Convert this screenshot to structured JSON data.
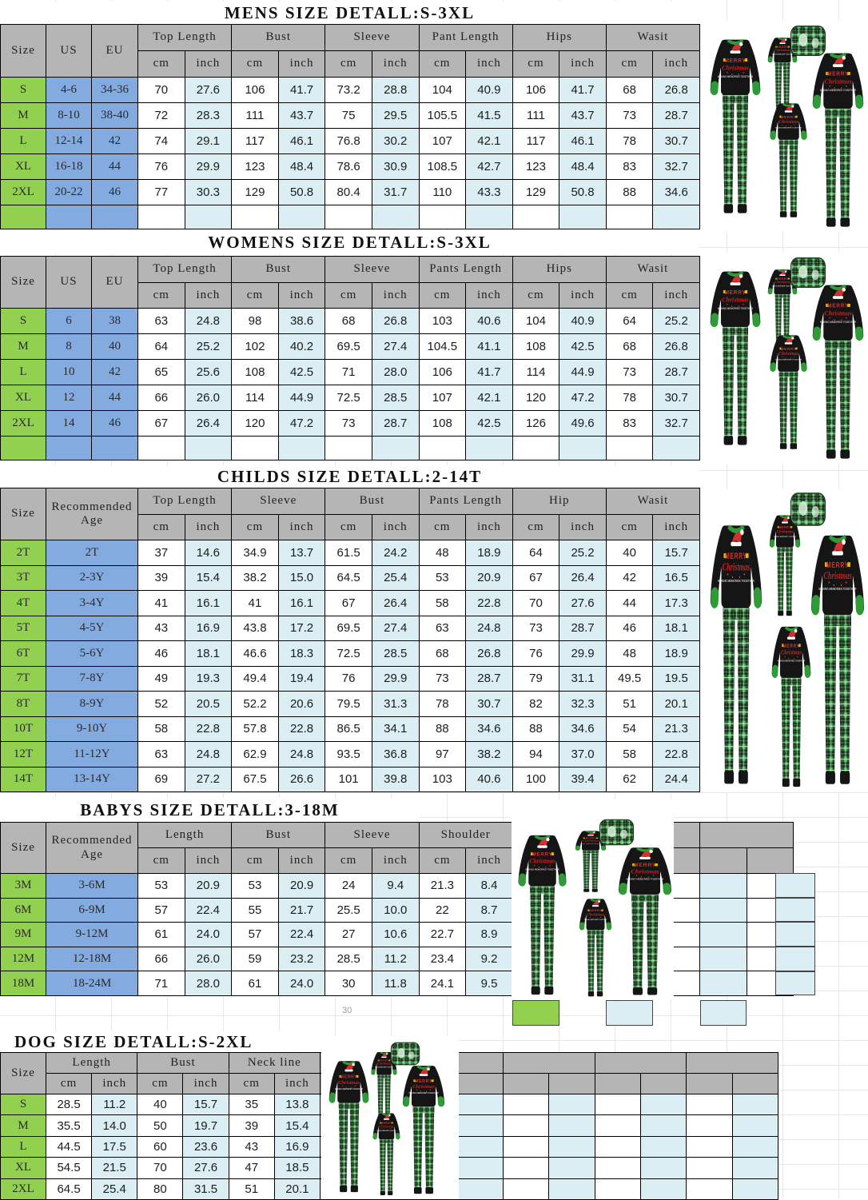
{
  "colors": {
    "header_gray": "#b5b5b5",
    "size_green": "#92d050",
    "us_eu_blue": "#83abdf",
    "inch_blue": "#dbeef4",
    "border_black": "#000000",
    "grid_line": "#e7e7e7",
    "plaid_green": "#3fae4e",
    "shirt_black": "#151515",
    "trim_green": "#2f9b37",
    "hat_red": "#d43030"
  },
  "footnote_30": "30",
  "sections": [
    {
      "id": "mens",
      "title": "MENS SIZE DETALL:S-3XL",
      "id_headers": [
        "Size",
        "US",
        "EU"
      ],
      "groups": [
        "Top Length",
        "Bust",
        "Sleeve",
        "Pant Length",
        "Hips",
        "Wasit"
      ],
      "sub_headers": [
        "cm",
        "inch"
      ],
      "rows": [
        {
          "size": "S",
          "ids": [
            "4-6",
            "34-36"
          ],
          "values": [
            "70",
            "27.6",
            "106",
            "41.7",
            "73.2",
            "28.8",
            "104",
            "40.9",
            "106",
            "41.7",
            "68",
            "26.8"
          ]
        },
        {
          "size": "M",
          "ids": [
            "8-10",
            "38-40"
          ],
          "values": [
            "72",
            "28.3",
            "111",
            "43.7",
            "75",
            "29.5",
            "105.5",
            "41.5",
            "111",
            "43.7",
            "73",
            "28.7"
          ]
        },
        {
          "size": "L",
          "ids": [
            "12-14",
            "42"
          ],
          "values": [
            "74",
            "29.1",
            "117",
            "46.1",
            "76.8",
            "30.2",
            "107",
            "42.1",
            "117",
            "46.1",
            "78",
            "30.7"
          ]
        },
        {
          "size": "XL",
          "ids": [
            "16-18",
            "44"
          ],
          "values": [
            "76",
            "29.9",
            "123",
            "48.4",
            "78.6",
            "30.9",
            "108.5",
            "42.7",
            "123",
            "48.4",
            "83",
            "32.7"
          ]
        },
        {
          "size": "2XL",
          "ids": [
            "20-22",
            "46"
          ],
          "values": [
            "77",
            "30.3",
            "129",
            "50.8",
            "80.4",
            "31.7",
            "110",
            "43.3",
            "129",
            "50.8",
            "88",
            "34.6"
          ]
        }
      ]
    },
    {
      "id": "womens",
      "title": "WOMENS SIZE DETALL:S-3XL",
      "id_headers": [
        "Size",
        "US",
        "EU"
      ],
      "groups": [
        "Top Length",
        "Bust",
        "Sleeve",
        "Pants Length",
        "Hips",
        "Wasit"
      ],
      "sub_headers": [
        "cm",
        "inch"
      ],
      "rows": [
        {
          "size": "S",
          "ids": [
            "6",
            "38"
          ],
          "values": [
            "63",
            "24.8",
            "98",
            "38.6",
            "68",
            "26.8",
            "103",
            "40.6",
            "104",
            "40.9",
            "64",
            "25.2"
          ]
        },
        {
          "size": "M",
          "ids": [
            "8",
            "40"
          ],
          "values": [
            "64",
            "25.2",
            "102",
            "40.2",
            "69.5",
            "27.4",
            "104.5",
            "41.1",
            "108",
            "42.5",
            "68",
            "26.8"
          ]
        },
        {
          "size": "L",
          "ids": [
            "10",
            "42"
          ],
          "values": [
            "65",
            "25.6",
            "108",
            "42.5",
            "71",
            "28.0",
            "106",
            "41.7",
            "114",
            "44.9",
            "73",
            "28.7"
          ]
        },
        {
          "size": "XL",
          "ids": [
            "12",
            "44"
          ],
          "values": [
            "66",
            "26.0",
            "114",
            "44.9",
            "72.5",
            "28.5",
            "107",
            "42.1",
            "120",
            "47.2",
            "78",
            "30.7"
          ]
        },
        {
          "size": "2XL",
          "ids": [
            "14",
            "46"
          ],
          "values": [
            "67",
            "26.4",
            "120",
            "47.2",
            "73",
            "28.7",
            "108",
            "42.5",
            "126",
            "49.6",
            "83",
            "32.7"
          ]
        }
      ]
    },
    {
      "id": "childs",
      "title": "CHILDS SIZE DETALL:2-14T",
      "id_headers": [
        "Size",
        "Recommended Age"
      ],
      "groups": [
        "Top Length",
        "Sleeve",
        "Bust",
        "Pants Length",
        "Hip",
        "Wasit"
      ],
      "sub_headers": [
        "cm",
        "inch"
      ],
      "rows": [
        {
          "size": "2T",
          "ids": [
            "2T"
          ],
          "values": [
            "37",
            "14.6",
            "34.9",
            "13.7",
            "61.5",
            "24.2",
            "48",
            "18.9",
            "64",
            "25.2",
            "40",
            "15.7"
          ]
        },
        {
          "size": "3T",
          "ids": [
            "2-3Y"
          ],
          "values": [
            "39",
            "15.4",
            "38.2",
            "15.0",
            "64.5",
            "25.4",
            "53",
            "20.9",
            "67",
            "26.4",
            "42",
            "16.5"
          ]
        },
        {
          "size": "4T",
          "ids": [
            "3-4Y"
          ],
          "values": [
            "41",
            "16.1",
            "41",
            "16.1",
            "67",
            "26.4",
            "58",
            "22.8",
            "70",
            "27.6",
            "44",
            "17.3"
          ]
        },
        {
          "size": "5T",
          "ids": [
            "4-5Y"
          ],
          "values": [
            "43",
            "16.9",
            "43.8",
            "17.2",
            "69.5",
            "27.4",
            "63",
            "24.8",
            "73",
            "28.7",
            "46",
            "18.1"
          ]
        },
        {
          "size": "6T",
          "ids": [
            "5-6Y"
          ],
          "values": [
            "46",
            "18.1",
            "46.6",
            "18.3",
            "72.5",
            "28.5",
            "68",
            "26.8",
            "76",
            "29.9",
            "48",
            "18.9"
          ]
        },
        {
          "size": "7T",
          "ids": [
            "7-8Y"
          ],
          "values": [
            "49",
            "19.3",
            "49.4",
            "19.4",
            "76",
            "29.9",
            "73",
            "28.7",
            "79",
            "31.1",
            "49.5",
            "19.5"
          ]
        },
        {
          "size": "8T",
          "ids": [
            "8-9Y"
          ],
          "values": [
            "52",
            "20.5",
            "52.2",
            "20.6",
            "79.5",
            "31.3",
            "78",
            "30.7",
            "82",
            "32.3",
            "51",
            "20.1"
          ]
        },
        {
          "size": "10T",
          "ids": [
            "9-10Y"
          ],
          "values": [
            "58",
            "22.8",
            "57.8",
            "22.8",
            "86.5",
            "34.1",
            "88",
            "34.6",
            "88",
            "34.6",
            "54",
            "21.3"
          ]
        },
        {
          "size": "12T",
          "ids": [
            "11-12Y"
          ],
          "values": [
            "63",
            "24.8",
            "62.9",
            "24.8",
            "93.5",
            "36.8",
            "97",
            "38.2",
            "94",
            "37.0",
            "58",
            "22.8"
          ]
        },
        {
          "size": "14T",
          "ids": [
            "13-14Y"
          ],
          "values": [
            "69",
            "27.2",
            "67.5",
            "26.6",
            "101",
            "39.8",
            "103",
            "40.6",
            "100",
            "39.4",
            "62",
            "24.4"
          ]
        }
      ]
    },
    {
      "id": "babys",
      "title": "BABYS SIZE DETALL:3-18M",
      "id_headers": [
        "Size",
        "Recommended Age"
      ],
      "groups": [
        "Length",
        "Bust",
        "Sleeve",
        "Shoulder"
      ],
      "sub_headers": [
        "cm",
        "inch"
      ],
      "rows": [
        {
          "size": "3M",
          "ids": [
            "3-6M"
          ],
          "values": [
            "53",
            "20.9",
            "53",
            "20.9",
            "24",
            "9.4",
            "21.3",
            "8.4"
          ]
        },
        {
          "size": "6M",
          "ids": [
            "6-9M"
          ],
          "values": [
            "57",
            "22.4",
            "55",
            "21.7",
            "25.5",
            "10.0",
            "22",
            "8.7"
          ]
        },
        {
          "size": "9M",
          "ids": [
            "9-12M"
          ],
          "values": [
            "61",
            "24.0",
            "57",
            "22.4",
            "27",
            "10.6",
            "22.7",
            "8.9"
          ]
        },
        {
          "size": "12M",
          "ids": [
            "12-18M"
          ],
          "values": [
            "66",
            "26.0",
            "59",
            "23.2",
            "28.5",
            "11.2",
            "23.4",
            "9.2"
          ]
        },
        {
          "size": "18M",
          "ids": [
            "18-24M"
          ],
          "values": [
            "71",
            "28.0",
            "61",
            "24.0",
            "30",
            "11.8",
            "24.1",
            "9.5"
          ]
        }
      ]
    },
    {
      "id": "dog",
      "title": "DOG SIZE DETALL:S-2XL",
      "id_headers": [
        "Size"
      ],
      "groups": [
        "Length",
        "Bust",
        "Neck line"
      ],
      "sub_headers": [
        "cm",
        "inch"
      ],
      "rows": [
        {
          "size": "S",
          "ids": [],
          "values": [
            "28.5",
            "11.2",
            "40",
            "15.7",
            "35",
            "13.8"
          ]
        },
        {
          "size": "M",
          "ids": [],
          "values": [
            "35.5",
            "14.0",
            "50",
            "19.7",
            "39",
            "15.4"
          ]
        },
        {
          "size": "L",
          "ids": [],
          "values": [
            "44.5",
            "17.5",
            "60",
            "23.6",
            "43",
            "16.9"
          ]
        },
        {
          "size": "XL",
          "ids": [],
          "values": [
            "54.5",
            "21.5",
            "70",
            "27.6",
            "47",
            "18.5"
          ]
        },
        {
          "size": "2XL",
          "ids": [],
          "values": [
            "64.5",
            "25.4",
            "80",
            "31.5",
            "51",
            "20.1"
          ]
        }
      ]
    }
  ]
}
